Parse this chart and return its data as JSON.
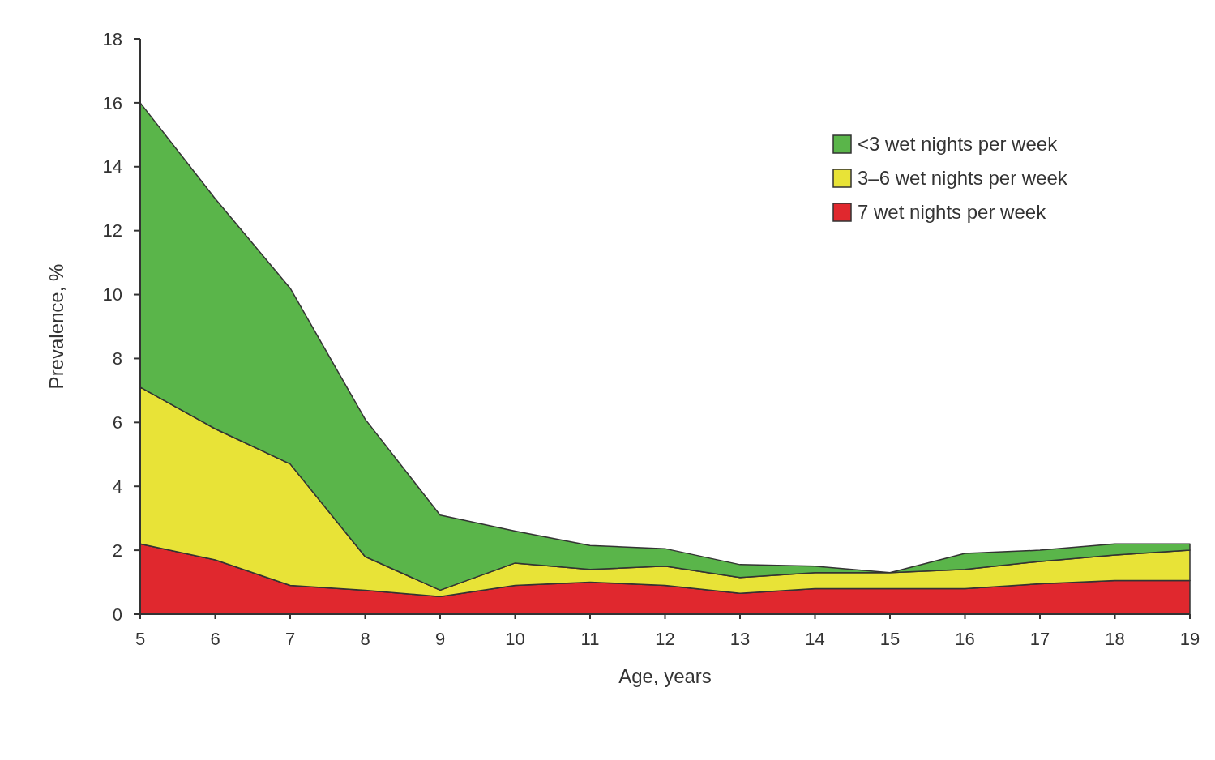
{
  "chart_data": {
    "type": "area",
    "stacked": true,
    "xlabel": "Age, years",
    "ylabel": "Prevalence, %",
    "x": [
      5,
      6,
      7,
      8,
      9,
      10,
      11,
      12,
      13,
      14,
      15,
      16,
      17,
      18,
      19
    ],
    "series": [
      {
        "name": "7 wet nights per week",
        "color": "#e0282e",
        "values": [
          2.2,
          1.7,
          0.9,
          0.75,
          0.55,
          0.9,
          1.0,
          0.9,
          0.65,
          0.8,
          0.8,
          0.8,
          0.95,
          1.05,
          1.05
        ]
      },
      {
        "name": "3–6 wet nights per week",
        "color": "#e8e337",
        "values": [
          4.9,
          4.1,
          3.8,
          1.05,
          0.2,
          0.7,
          0.4,
          0.6,
          0.5,
          0.5,
          0.5,
          0.6,
          0.7,
          0.8,
          0.95
        ]
      },
      {
        "name": "<3 wet nights per week",
        "color": "#5ab54a",
        "values": [
          8.9,
          7.2,
          5.5,
          4.3,
          2.35,
          1.0,
          0.75,
          0.55,
          0.4,
          0.2,
          0,
          0.5,
          0.35,
          0.35,
          0.2
        ]
      }
    ],
    "xlim": [
      5,
      19
    ],
    "xticks": [
      5,
      6,
      7,
      8,
      9,
      10,
      11,
      12,
      13,
      14,
      15,
      16,
      17,
      18,
      19
    ],
    "ylim": [
      0,
      18
    ],
    "yticks": [
      0,
      2,
      4,
      6,
      8,
      10,
      12,
      14,
      16,
      18
    ],
    "grid": false,
    "legend": "top right"
  }
}
